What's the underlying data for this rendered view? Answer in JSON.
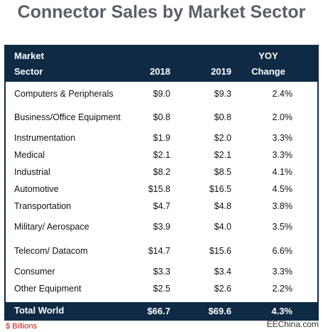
{
  "title": "Connector Sales by Market Sector",
  "chart_data": {
    "type": "table",
    "title": "Connector Sales by Market Sector",
    "columns": [
      {
        "line1": "Market",
        "line2": "Sector"
      },
      {
        "line1": "",
        "line2": "2018"
      },
      {
        "line1": "",
        "line2": "2019"
      },
      {
        "line1": "YOY",
        "line2": "Change"
      }
    ],
    "rows": [
      {
        "sector": "Computers & Peripherals",
        "y2018": "$9.0",
        "y2019": "$9.3",
        "yoy": "2.4%"
      },
      {
        "sector": "Business/Office Equipment",
        "y2018": "$0.8",
        "y2019": "$0.8",
        "yoy": "2.0%"
      },
      {
        "sector": "Instrumentation",
        "y2018": "$1.9",
        "y2019": "$2.0",
        "yoy": "3.3%"
      },
      {
        "sector": "Medical",
        "y2018": "$2.1",
        "y2019": "$2.1",
        "yoy": "3.3%"
      },
      {
        "sector": "Industrial",
        "y2018": "$8.2",
        "y2019": "$8.5",
        "yoy": "4.1%"
      },
      {
        "sector": "Automotive",
        "y2018": "$15.8",
        "y2019": "$16.5",
        "yoy": "4.5%"
      },
      {
        "sector": "Transportation",
        "y2018": "$4.7",
        "y2019": "$4.8",
        "yoy": "3.8%"
      },
      {
        "sector": "Military/ Aerospace",
        "y2018": "$3.9",
        "y2019": "$4.0",
        "yoy": "3.5%"
      },
      {
        "sector": "Telecom/ Datacom",
        "y2018": "$14.7",
        "y2019": "$15.6",
        "yoy": "6.6%"
      },
      {
        "sector": "Consumer",
        "y2018": "$3.3",
        "y2019": "$3.4",
        "yoy": "3.3%"
      },
      {
        "sector": "Other Equipment",
        "y2018": "$2.5",
        "y2019": "$2.6",
        "yoy": "2.2%"
      }
    ],
    "total": {
      "sector": "Total World",
      "y2018": "$66.7",
      "y2019": "$69.6",
      "yoy": "4.3%"
    },
    "unit_note": "$ Billions"
  },
  "watermark": "EEChina.com",
  "colors": {
    "header_bg": "#0e2a45",
    "title_text": "#5a6068",
    "footnote_text": "#cc1010"
  }
}
